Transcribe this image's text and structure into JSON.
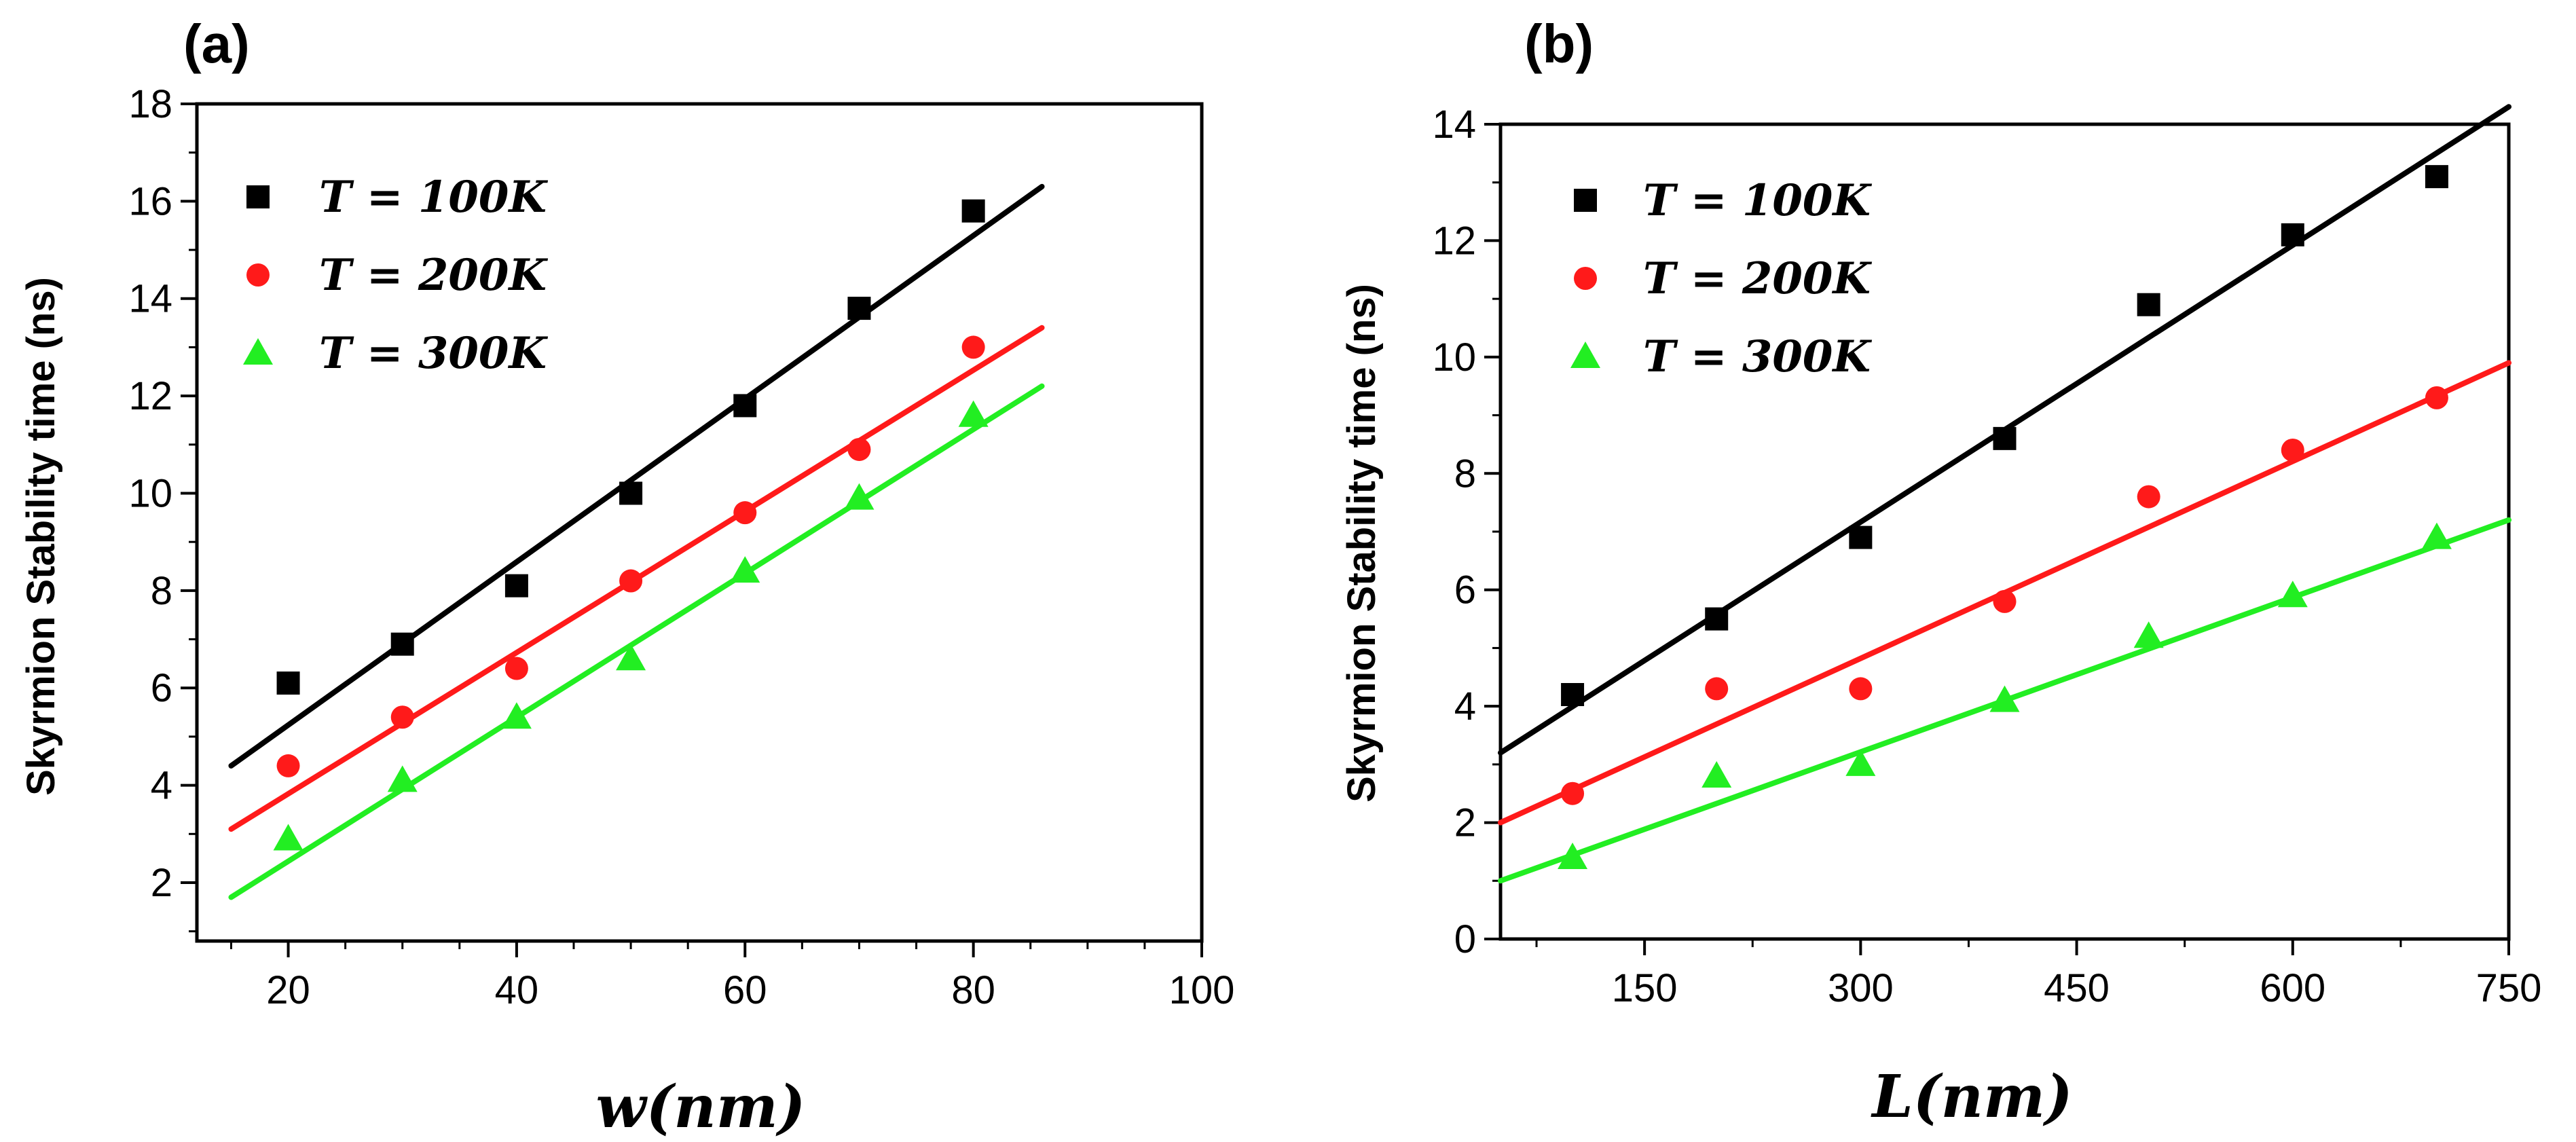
{
  "chart_data": [
    {
      "panel_label": "(a)",
      "type": "scatter",
      "xlabel": "w(nm)",
      "ylabel": "Skyrmion Stability time (ns)",
      "xlim": [
        12,
        100
      ],
      "ylim": [
        0.8,
        18
      ],
      "xticks": [
        20,
        40,
        60,
        80,
        100
      ],
      "yticks": [
        2,
        4,
        6,
        8,
        10,
        12,
        14,
        16,
        18
      ],
      "legend_position": "top-left",
      "series": [
        {
          "name": "T = 100K",
          "color": "#000000",
          "marker": "square",
          "x": [
            20,
            30,
            40,
            50,
            60,
            70,
            80
          ],
          "y": [
            6.1,
            6.9,
            8.1,
            10.0,
            11.8,
            13.8,
            15.8
          ],
          "fit": {
            "x": [
              15,
              86
            ],
            "y": [
              4.4,
              16.3
            ]
          }
        },
        {
          "name": "T = 200K",
          "color": "#ff1a1a",
          "marker": "circle",
          "x": [
            20,
            30,
            40,
            50,
            60,
            70,
            80
          ],
          "y": [
            4.4,
            5.4,
            6.4,
            8.2,
            9.6,
            10.9,
            13.0
          ],
          "fit": {
            "x": [
              15,
              86
            ],
            "y": [
              3.1,
              13.4
            ]
          }
        },
        {
          "name": "T = 300K",
          "color": "#22ee22",
          "marker": "triangle",
          "x": [
            20,
            30,
            40,
            50,
            60,
            70,
            80
          ],
          "y": [
            2.9,
            4.1,
            5.4,
            6.6,
            8.4,
            9.9,
            11.6
          ],
          "fit": {
            "x": [
              15,
              86
            ],
            "y": [
              1.7,
              12.2
            ]
          }
        }
      ]
    },
    {
      "panel_label": "(b)",
      "type": "scatter",
      "xlabel": "L(nm)",
      "ylabel": "Skyrmion Stability time (ns)",
      "xlim": [
        50,
        750
      ],
      "ylim": [
        0,
        14
      ],
      "xticks": [
        150,
        300,
        450,
        600,
        750
      ],
      "yticks": [
        0,
        2,
        4,
        6,
        8,
        10,
        12,
        14
      ],
      "legend_position": "top-left",
      "series": [
        {
          "name": "T = 100K",
          "color": "#000000",
          "marker": "square",
          "x": [
            100,
            200,
            300,
            400,
            500,
            600,
            700
          ],
          "y": [
            4.2,
            5.5,
            6.9,
            8.6,
            10.9,
            12.1,
            13.1
          ],
          "fit": {
            "x": [
              50,
              750
            ],
            "y": [
              3.2,
              14.3
            ]
          }
        },
        {
          "name": "T = 200K",
          "color": "#ff1a1a",
          "marker": "circle",
          "x": [
            100,
            200,
            300,
            400,
            500,
            600,
            700
          ],
          "y": [
            2.5,
            4.3,
            4.3,
            5.8,
            7.6,
            8.4,
            9.3
          ],
          "fit": {
            "x": [
              50,
              750
            ],
            "y": [
              2.0,
              9.9
            ]
          }
        },
        {
          "name": "T = 300K",
          "color": "#22ee22",
          "marker": "triangle",
          "x": [
            100,
            200,
            300,
            400,
            500,
            600,
            700
          ],
          "y": [
            1.4,
            2.8,
            3.0,
            4.1,
            5.2,
            5.9,
            6.9
          ],
          "fit": {
            "x": [
              50,
              750
            ],
            "y": [
              1.0,
              7.2
            ]
          }
        }
      ]
    }
  ]
}
